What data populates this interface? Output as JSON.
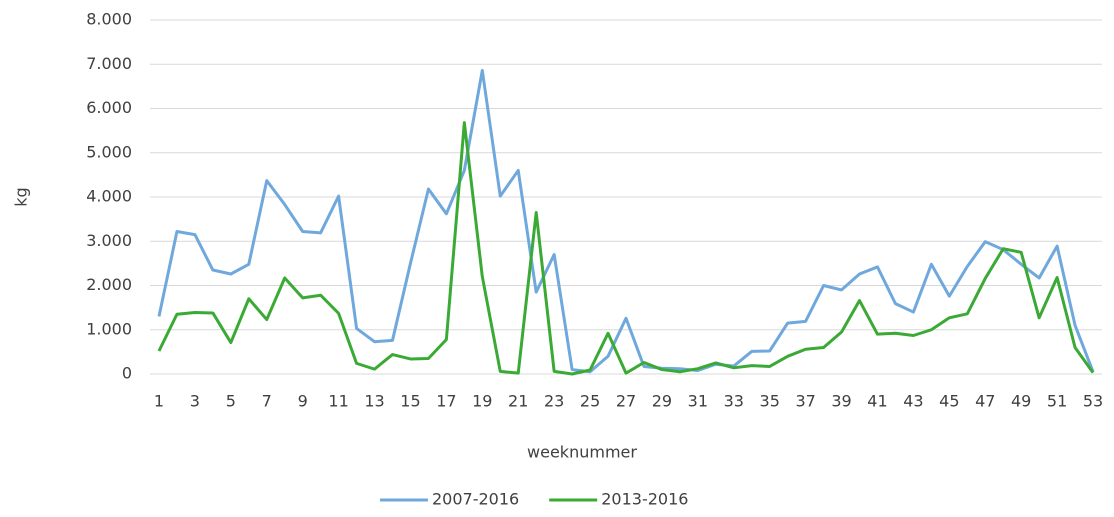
{
  "chart_data": {
    "type": "line",
    "y_label": "kg",
    "x_label": "weeknummer",
    "categories": [
      1,
      null,
      3,
      null,
      5,
      null,
      7,
      null,
      9,
      null,
      11,
      null,
      13,
      null,
      15,
      null,
      17,
      null,
      19,
      null,
      21,
      null,
      23,
      null,
      25,
      null,
      27,
      null,
      29,
      null,
      31,
      null,
      33,
      null,
      35,
      null,
      37,
      null,
      39,
      null,
      41,
      null,
      43,
      null,
      45,
      null,
      47,
      null,
      49,
      null,
      51,
      null,
      53
    ],
    "series": [
      {
        "name": "2007-2016",
        "color": "#6fa8dc",
        "values": [
          1300,
          3220,
          3150,
          2350,
          2260,
          2480,
          4370,
          3830,
          3220,
          3190,
          4020,
          1030,
          730,
          760,
          2500,
          4180,
          3620,
          4600,
          6860,
          4020,
          4600,
          1850,
          2700,
          100,
          50,
          400,
          1260,
          170,
          130,
          120,
          80,
          220,
          180,
          510,
          520,
          1150,
          1190,
          2000,
          1900,
          2260,
          2420,
          1590,
          1400,
          2480,
          1760,
          2430,
          2990,
          2810,
          2480,
          2170,
          2890,
          1100,
          50
        ]
      },
      {
        "name": "2013-2016",
        "color": "#3aaa35",
        "values": [
          520,
          1350,
          1390,
          1380,
          710,
          1700,
          1230,
          2170,
          1720,
          1780,
          1370,
          240,
          110,
          440,
          340,
          350,
          780,
          5680,
          2200,
          60,
          20,
          3650,
          60,
          0,
          90,
          920,
          20,
          260,
          100,
          50,
          120,
          250,
          140,
          190,
          170,
          400,
          560,
          600,
          950,
          1660,
          900,
          920,
          870,
          1000,
          1270,
          1360,
          2160,
          2830,
          2750,
          1270,
          2180,
          600,
          30
        ]
      }
    ],
    "ylim": [
      0,
      8000
    ],
    "yticks": [
      0,
      {
        "value": 1000,
        "label": "1.000"
      },
      {
        "value": 2000,
        "label": "2.000"
      },
      {
        "value": 3000,
        "label": "3.000"
      },
      {
        "value": 4000,
        "label": "4.000"
      },
      {
        "value": 5000,
        "label": "5.000"
      },
      {
        "value": 6000,
        "label": "6.000"
      },
      {
        "value": 7000,
        "label": "7.000"
      },
      {
        "value": 8000,
        "label": "8.000"
      }
    ],
    "grid": true,
    "legend": "bottom"
  }
}
